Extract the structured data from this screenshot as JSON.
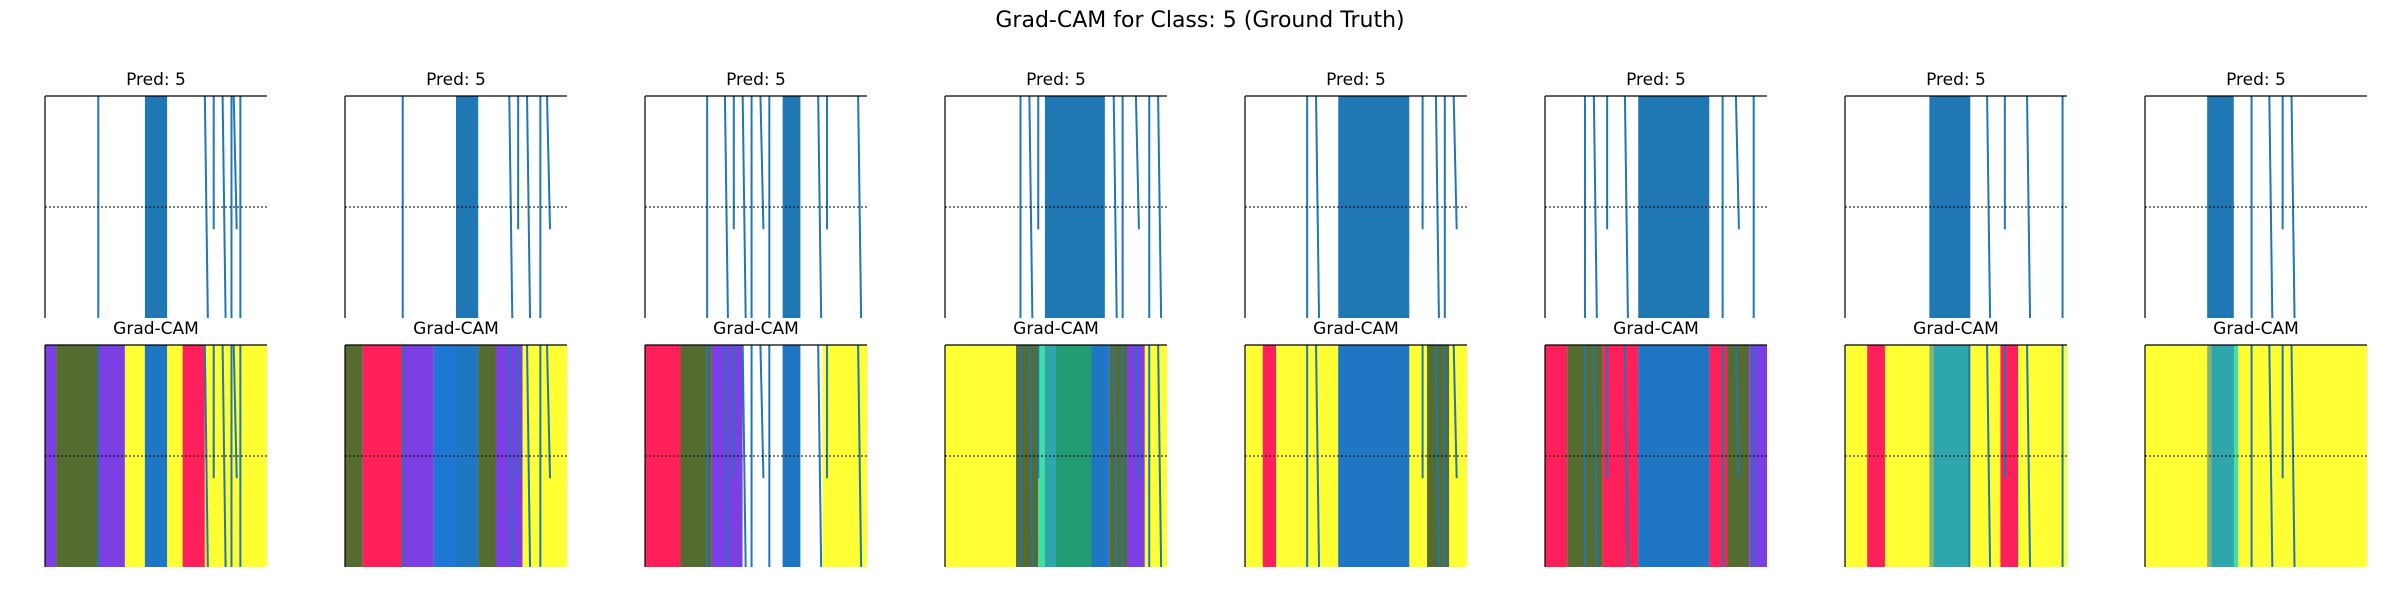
{
  "figure": {
    "suptitle": "Grad-CAM for Class: 5 (Ground Truth)"
  },
  "chart_data": {
    "type": "line",
    "description": "Grid of 8 samples; top row shows the time-series signal with predicted class, bottom row shows the same signal overlaid on a Grad-CAM heatmap.",
    "samples": [
      {
        "title": "Pred: 5",
        "cam_title": "Grad-CAM",
        "dense_band": [
          0.45,
          0.55
        ],
        "lines": [
          0.24,
          0.72,
          0.76,
          0.8,
          0.84,
          0.85,
          0.88
        ],
        "cam": [
          {
            "range": [
              0.0,
              0.05
            ],
            "color": "#7b3fe4"
          },
          {
            "range": [
              0.05,
              0.24
            ],
            "color": "#556b2f"
          },
          {
            "range": [
              0.24,
              0.36
            ],
            "color": "#7b3fe4"
          },
          {
            "range": [
              0.36,
              0.45
            ],
            "color": "#ffff33"
          },
          {
            "range": [
              0.45,
              0.55
            ],
            "color": "#1f77d4"
          },
          {
            "range": [
              0.55,
              0.62
            ],
            "color": "#ffff33"
          },
          {
            "range": [
              0.62,
              0.72
            ],
            "color": "#ff1f5a"
          },
          {
            "range": [
              0.72,
              1.0
            ],
            "color": "#ffff33"
          }
        ]
      },
      {
        "title": "Pred: 5",
        "cam_title": "Grad-CAM",
        "dense_band": [
          0.5,
          0.6
        ],
        "lines": [
          0.26,
          0.74,
          0.78,
          0.82,
          0.88,
          0.91
        ],
        "cam": [
          {
            "range": [
              0.0,
              0.08
            ],
            "color": "#556b2f"
          },
          {
            "range": [
              0.08,
              0.26
            ],
            "color": "#ff1f5a"
          },
          {
            "range": [
              0.26,
              0.4
            ],
            "color": "#7b3fe4"
          },
          {
            "range": [
              0.4,
              0.5
            ],
            "color": "#1f77d4"
          },
          {
            "range": [
              0.5,
              0.6
            ],
            "color": "#1f77d4"
          },
          {
            "range": [
              0.6,
              0.68
            ],
            "color": "#556b2f"
          },
          {
            "range": [
              0.68,
              0.8
            ],
            "color": "#7b3fe4"
          },
          {
            "range": [
              0.8,
              1.0
            ],
            "color": "#ffff33"
          }
        ]
      },
      {
        "title": "Pred: 5",
        "cam_title": "Grad-CAM",
        "dense_band": [
          0.62,
          0.7
        ],
        "lines": [
          0.28,
          0.36,
          0.4,
          0.44,
          0.48,
          0.52,
          0.56,
          0.78,
          0.82,
          0.96
        ],
        "cam": [
          {
            "range": [
              0.0,
              0.16
            ],
            "color": "#ff1f5a"
          },
          {
            "range": [
              0.16,
              0.3
            ],
            "color": "#556b2f"
          },
          {
            "range": [
              0.3,
              0.44
            ],
            "color": "#7b3fe4"
          },
          {
            "range": [
              0.44,
              0.62
            ],
            "color": "#ffffff"
          },
          {
            "range": [
              0.62,
              0.7
            ],
            "color": "#1f77d4"
          },
          {
            "range": [
              0.7,
              0.8
            ],
            "color": "#ffffff"
          },
          {
            "range": [
              0.8,
              1.0
            ],
            "color": "#ffff33"
          }
        ]
      },
      {
        "title": "Pred: 5",
        "cam_title": "Grad-CAM",
        "dense_band": [
          0.45,
          0.72
        ],
        "lines": [
          0.34,
          0.38,
          0.42,
          0.76,
          0.8,
          0.86,
          0.92,
          0.96
        ],
        "cam": [
          {
            "range": [
              0.0,
              0.32
            ],
            "color": "#ffff33"
          },
          {
            "range": [
              0.32,
              0.42
            ],
            "color": "#556b2f"
          },
          {
            "range": [
              0.42,
              0.5
            ],
            "color": "#40e0a0"
          },
          {
            "range": [
              0.5,
              0.66
            ],
            "color": "#22cc22"
          },
          {
            "range": [
              0.66,
              0.74
            ],
            "color": "#1f77d4"
          },
          {
            "range": [
              0.74,
              0.82
            ],
            "color": "#556b2f"
          },
          {
            "range": [
              0.82,
              0.9
            ],
            "color": "#7b3fe4"
          },
          {
            "range": [
              0.9,
              1.0
            ],
            "color": "#ffff33"
          }
        ]
      },
      {
        "title": "Pred: 5",
        "cam_title": "Grad-CAM",
        "dense_band": [
          0.42,
          0.74
        ],
        "lines": [
          0.28,
          0.32,
          0.8,
          0.86,
          0.9,
          0.94
        ],
        "cam": [
          {
            "range": [
              0.0,
              0.08
            ],
            "color": "#ffff33"
          },
          {
            "range": [
              0.08,
              0.14
            ],
            "color": "#ff1f5a"
          },
          {
            "range": [
              0.14,
              0.42
            ],
            "color": "#ffff33"
          },
          {
            "range": [
              0.42,
              0.74
            ],
            "color": "#1f77d4"
          },
          {
            "range": [
              0.74,
              0.82
            ],
            "color": "#ffff33"
          },
          {
            "range": [
              0.82,
              0.92
            ],
            "color": "#556b2f"
          },
          {
            "range": [
              0.92,
              1.0
            ],
            "color": "#ffff33"
          }
        ]
      },
      {
        "title": "Pred: 5",
        "cam_title": "Grad-CAM",
        "dense_band": [
          0.42,
          0.74
        ],
        "lines": [
          0.18,
          0.22,
          0.28,
          0.36,
          0.8,
          0.86,
          0.94
        ],
        "cam": [
          {
            "range": [
              0.0,
              0.1
            ],
            "color": "#ff1f5a"
          },
          {
            "range": [
              0.1,
              0.26
            ],
            "color": "#556b2f"
          },
          {
            "range": [
              0.26,
              0.42
            ],
            "color": "#ff1f5a"
          },
          {
            "range": [
              0.42,
              0.74
            ],
            "color": "#1f77d4"
          },
          {
            "range": [
              0.74,
              0.82
            ],
            "color": "#ff1f5a"
          },
          {
            "range": [
              0.82,
              0.92
            ],
            "color": "#556b2f"
          },
          {
            "range": [
              0.92,
              1.0
            ],
            "color": "#7b3fe4"
          }
        ]
      },
      {
        "title": "Pred: 5",
        "cam_title": "Grad-CAM",
        "dense_band": [
          0.38,
          0.56
        ],
        "lines": [
          0.56,
          0.64,
          0.72,
          0.82,
          0.98
        ],
        "cam": [
          {
            "range": [
              0.0,
              0.1
            ],
            "color": "#ffff33"
          },
          {
            "range": [
              0.1,
              0.18
            ],
            "color": "#ff1f5a"
          },
          {
            "range": [
              0.18,
              0.4
            ],
            "color": "#ffff33"
          },
          {
            "range": [
              0.4,
              0.56
            ],
            "color": "#40e0a0"
          },
          {
            "range": [
              0.56,
              0.7
            ],
            "color": "#ffff33"
          },
          {
            "range": [
              0.7,
              0.78
            ],
            "color": "#ff1f5a"
          },
          {
            "range": [
              0.78,
              1.0
            ],
            "color": "#ffff33"
          }
        ]
      },
      {
        "title": "Pred: 5",
        "cam_title": "Grad-CAM",
        "dense_band": [
          0.28,
          0.4
        ],
        "lines": [
          0.48,
          0.56,
          0.62,
          0.66
        ],
        "cam": [
          {
            "range": [
              0.0,
              0.3
            ],
            "color": "#ffff33"
          },
          {
            "range": [
              0.3,
              0.42
            ],
            "color": "#40e0a0"
          },
          {
            "range": [
              0.42,
              1.0
            ],
            "color": "#ffff33"
          }
        ]
      }
    ]
  }
}
